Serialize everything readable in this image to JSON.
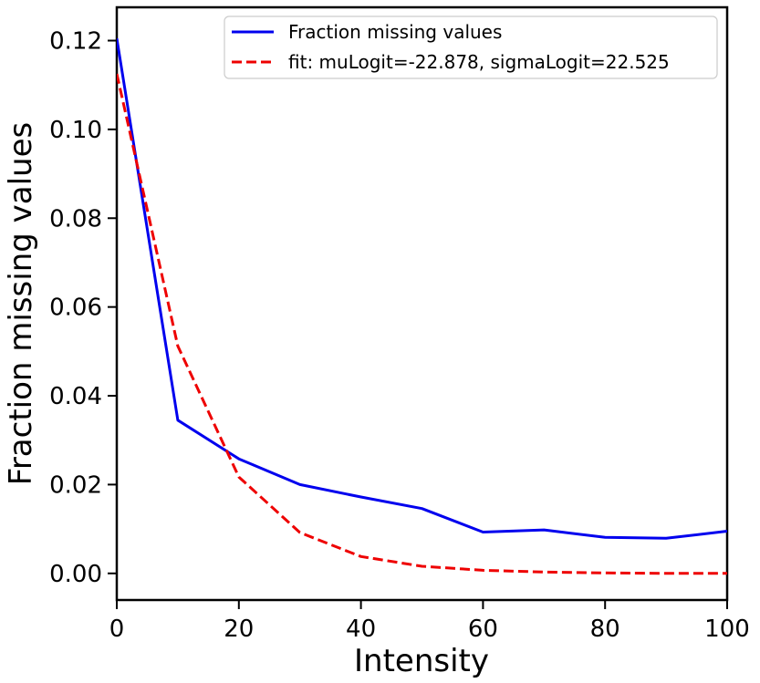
{
  "chart_data": {
    "type": "line",
    "title": "",
    "xlabel": "Intensity",
    "ylabel": "Fraction missing values",
    "xlim": [
      0,
      100
    ],
    "ylim": [
      -0.006,
      0.1275
    ],
    "xticks": [
      0,
      20,
      40,
      60,
      80,
      100
    ],
    "xtick_labels": [
      "0",
      "20",
      "40",
      "60",
      "80",
      "100"
    ],
    "yticks": [
      0.0,
      0.02,
      0.04,
      0.06,
      0.08,
      0.1,
      0.12
    ],
    "ytick_labels": [
      "0.00",
      "0.02",
      "0.04",
      "0.06",
      "0.08",
      "0.10",
      "0.12"
    ],
    "grid": false,
    "legend_position": "top-right",
    "series": [
      {
        "name": "Fraction missing values",
        "color": "#0000ee",
        "style": "solid",
        "x": [
          0,
          10,
          20,
          30,
          40,
          50,
          60,
          70,
          80,
          90,
          100
        ],
        "y": [
          0.1205,
          0.0345,
          0.0258,
          0.02,
          0.0172,
          0.0146,
          0.0093,
          0.0098,
          0.0081,
          0.0079,
          0.0095
        ]
      },
      {
        "name": "fit: muLogit=-22.878, sigmaLogit=22.525",
        "color": "#ee0000",
        "style": "dashed",
        "x": [
          0,
          10,
          20,
          30,
          40,
          50,
          60,
          70,
          80,
          90,
          100
        ],
        "y": [
          0.1125,
          0.0512,
          0.0217,
          0.0092,
          0.0038,
          0.0016,
          0.0007,
          0.0003,
          0.0001,
          0.0,
          0.0
        ]
      }
    ]
  }
}
